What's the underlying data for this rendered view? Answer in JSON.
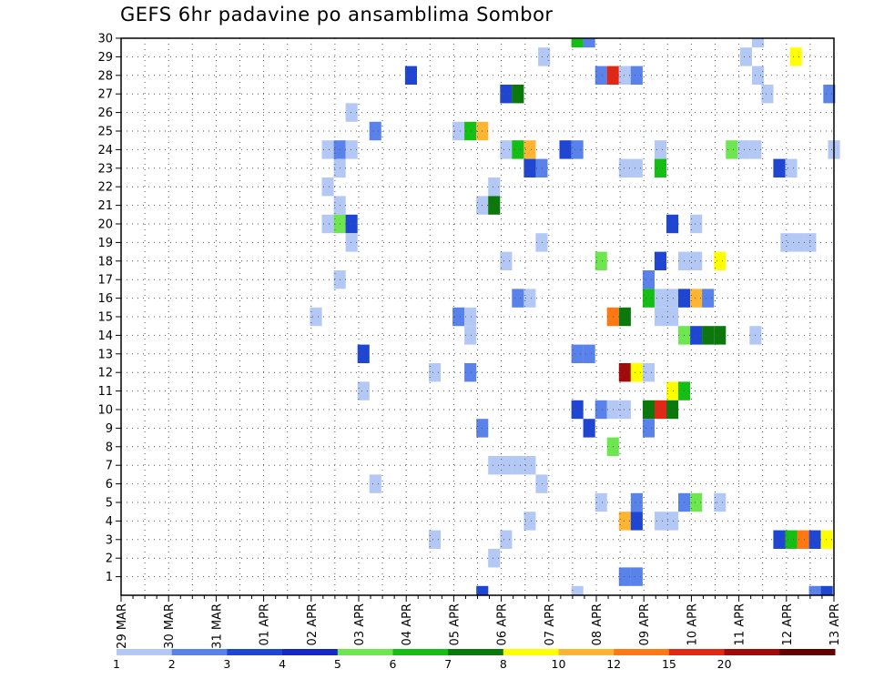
{
  "chart_data": {
    "type": "heatmap",
    "title": "GEFS 6hr padavine po ansamblima Sombor",
    "y_categories": [
      "1",
      "2",
      "3",
      "4",
      "5",
      "6",
      "7",
      "8",
      "9",
      "10",
      "11",
      "12",
      "13",
      "14",
      "15",
      "16",
      "17",
      "18",
      "19",
      "20",
      "21",
      "22",
      "23",
      "24",
      "25",
      "26",
      "27",
      "28",
      "29",
      "30"
    ],
    "x_tick_labels": [
      "29 MAR",
      "30 MAR",
      "31 MAR",
      "01 APR",
      "02 APR",
      "03 APR",
      "04 APR",
      "05 APR",
      "06 APR",
      "07 APR",
      "08 APR",
      "09 APR",
      "10 APR",
      "11 APR",
      "12 APR",
      "13 APR"
    ],
    "x_range_days": [
      0,
      15
    ],
    "y_range": [
      0,
      30
    ],
    "grid": true,
    "legend": {
      "placement": "bottom",
      "levels": [
        "1",
        "2",
        "3",
        "4",
        "5",
        "6",
        "7",
        "8",
        "10",
        "12",
        "15",
        "20"
      ],
      "colors": [
        "#b4c8f5",
        "#5a82eb",
        "#1e46d2",
        "#1428c8",
        "#6ee650",
        "#14be14",
        "#0a780a",
        "#ffff00",
        "#ffb432",
        "#ff7814",
        "#e12814",
        "#a00a0a",
        "#640000"
      ]
    },
    "cells": [
      {
        "member": 30,
        "x_days": 9.6,
        "level": 5
      },
      {
        "member": 30,
        "x_days": 9.85,
        "level": 1
      },
      {
        "member": 30,
        "x_days": 13.4,
        "level": 0
      },
      {
        "member": 29,
        "x_days": 8.9,
        "level": 0
      },
      {
        "member": 29,
        "x_days": 13.15,
        "level": 0
      },
      {
        "member": 29,
        "x_days": 14.2,
        "level": 7
      },
      {
        "member": 28,
        "x_days": 6.1,
        "level": 2
      },
      {
        "member": 28,
        "x_days": 10.1,
        "level": 1
      },
      {
        "member": 28,
        "x_days": 10.35,
        "level": 10
      },
      {
        "member": 28,
        "x_days": 10.6,
        "level": 0
      },
      {
        "member": 28,
        "x_days": 10.85,
        "level": 1
      },
      {
        "member": 28,
        "x_days": 13.4,
        "level": 0
      },
      {
        "member": 27,
        "x_days": 8.1,
        "level": 2
      },
      {
        "member": 27,
        "x_days": 8.35,
        "level": 6
      },
      {
        "member": 27,
        "x_days": 13.6,
        "level": 0
      },
      {
        "member": 27,
        "x_days": 14.9,
        "level": 1
      },
      {
        "member": 26,
        "x_days": 4.85,
        "level": 0
      },
      {
        "member": 25,
        "x_days": 5.35,
        "level": 1
      },
      {
        "member": 25,
        "x_days": 7.1,
        "level": 0
      },
      {
        "member": 25,
        "x_days": 7.35,
        "level": 5
      },
      {
        "member": 25,
        "x_days": 7.6,
        "level": 8
      },
      {
        "member": 24,
        "x_days": 4.35,
        "level": 0
      },
      {
        "member": 24,
        "x_days": 4.6,
        "level": 1
      },
      {
        "member": 24,
        "x_days": 4.85,
        "level": 0
      },
      {
        "member": 24,
        "x_days": 8.1,
        "level": 0
      },
      {
        "member": 24,
        "x_days": 8.35,
        "level": 5
      },
      {
        "member": 24,
        "x_days": 8.6,
        "level": 8
      },
      {
        "member": 24,
        "x_days": 9.35,
        "level": 2
      },
      {
        "member": 24,
        "x_days": 9.6,
        "level": 1
      },
      {
        "member": 24,
        "x_days": 11.35,
        "level": 0
      },
      {
        "member": 24,
        "x_days": 12.85,
        "level": 4
      },
      {
        "member": 24,
        "x_days": 13.1,
        "level": 0
      },
      {
        "member": 24,
        "x_days": 13.35,
        "level": 0
      },
      {
        "member": 24,
        "x_days": 15.0,
        "level": 0
      },
      {
        "member": 23,
        "x_days": 4.6,
        "level": 0
      },
      {
        "member": 23,
        "x_days": 8.6,
        "level": 2
      },
      {
        "member": 23,
        "x_days": 8.85,
        "level": 1
      },
      {
        "member": 23,
        "x_days": 10.6,
        "level": 0
      },
      {
        "member": 23,
        "x_days": 10.85,
        "level": 0
      },
      {
        "member": 23,
        "x_days": 11.35,
        "level": 5
      },
      {
        "member": 23,
        "x_days": 13.85,
        "level": 2
      },
      {
        "member": 23,
        "x_days": 14.1,
        "level": 0
      },
      {
        "member": 22,
        "x_days": 4.35,
        "level": 0
      },
      {
        "member": 22,
        "x_days": 7.85,
        "level": 0
      },
      {
        "member": 21,
        "x_days": 4.6,
        "level": 0
      },
      {
        "member": 21,
        "x_days": 7.6,
        "level": 0
      },
      {
        "member": 21,
        "x_days": 7.85,
        "level": 6
      },
      {
        "member": 20,
        "x_days": 4.35,
        "level": 0
      },
      {
        "member": 20,
        "x_days": 4.6,
        "level": 4
      },
      {
        "member": 20,
        "x_days": 4.85,
        "level": 2
      },
      {
        "member": 20,
        "x_days": 11.6,
        "level": 2
      },
      {
        "member": 20,
        "x_days": 12.1,
        "level": 0
      },
      {
        "member": 19,
        "x_days": 4.85,
        "level": 0
      },
      {
        "member": 19,
        "x_days": 8.85,
        "level": 0
      },
      {
        "member": 19,
        "x_days": 14.0,
        "level": 0
      },
      {
        "member": 19,
        "x_days": 14.25,
        "level": 0
      },
      {
        "member": 19,
        "x_days": 14.5,
        "level": 0
      },
      {
        "member": 18,
        "x_days": 8.1,
        "level": 0
      },
      {
        "member": 18,
        "x_days": 10.1,
        "level": 4
      },
      {
        "member": 18,
        "x_days": 11.35,
        "level": 2
      },
      {
        "member": 18,
        "x_days": 11.85,
        "level": 0
      },
      {
        "member": 18,
        "x_days": 12.1,
        "level": 0
      },
      {
        "member": 18,
        "x_days": 12.6,
        "level": 7
      },
      {
        "member": 17,
        "x_days": 4.6,
        "level": 0
      },
      {
        "member": 17,
        "x_days": 11.1,
        "level": 1
      },
      {
        "member": 16,
        "x_days": 8.35,
        "level": 1
      },
      {
        "member": 16,
        "x_days": 8.6,
        "level": 0
      },
      {
        "member": 16,
        "x_days": 11.1,
        "level": 5
      },
      {
        "member": 16,
        "x_days": 11.35,
        "level": 0
      },
      {
        "member": 16,
        "x_days": 11.6,
        "level": 0
      },
      {
        "member": 16,
        "x_days": 11.85,
        "level": 2
      },
      {
        "member": 16,
        "x_days": 12.1,
        "level": 8
      },
      {
        "member": 16,
        "x_days": 12.35,
        "level": 1
      },
      {
        "member": 15,
        "x_days": 4.1,
        "level": 0
      },
      {
        "member": 15,
        "x_days": 7.1,
        "level": 1
      },
      {
        "member": 15,
        "x_days": 7.35,
        "level": 0
      },
      {
        "member": 15,
        "x_days": 10.35,
        "level": 9
      },
      {
        "member": 15,
        "x_days": 10.6,
        "level": 6
      },
      {
        "member": 15,
        "x_days": 11.35,
        "level": 0
      },
      {
        "member": 15,
        "x_days": 11.6,
        "level": 0
      },
      {
        "member": 14,
        "x_days": 7.35,
        "level": 0
      },
      {
        "member": 14,
        "x_days": 11.85,
        "level": 4
      },
      {
        "member": 14,
        "x_days": 12.1,
        "level": 2
      },
      {
        "member": 14,
        "x_days": 12.35,
        "level": 6
      },
      {
        "member": 14,
        "x_days": 12.6,
        "level": 6
      },
      {
        "member": 14,
        "x_days": 13.35,
        "level": 0
      },
      {
        "member": 13,
        "x_days": 5.1,
        "level": 2
      },
      {
        "member": 13,
        "x_days": 9.6,
        "level": 1
      },
      {
        "member": 13,
        "x_days": 9.85,
        "level": 1
      },
      {
        "member": 12,
        "x_days": 6.6,
        "level": 0
      },
      {
        "member": 12,
        "x_days": 7.35,
        "level": 1
      },
      {
        "member": 12,
        "x_days": 10.6,
        "level": 11
      },
      {
        "member": 12,
        "x_days": 10.85,
        "level": 7
      },
      {
        "member": 12,
        "x_days": 11.1,
        "level": 0
      },
      {
        "member": 11,
        "x_days": 5.1,
        "level": 0
      },
      {
        "member": 11,
        "x_days": 11.6,
        "level": 7
      },
      {
        "member": 11,
        "x_days": 11.85,
        "level": 5
      },
      {
        "member": 10,
        "x_days": 9.6,
        "level": 2
      },
      {
        "member": 10,
        "x_days": 10.1,
        "level": 1
      },
      {
        "member": 10,
        "x_days": 10.35,
        "level": 0
      },
      {
        "member": 10,
        "x_days": 10.6,
        "level": 0
      },
      {
        "member": 10,
        "x_days": 11.1,
        "level": 6
      },
      {
        "member": 10,
        "x_days": 11.35,
        "level": 10
      },
      {
        "member": 10,
        "x_days": 11.6,
        "level": 6
      },
      {
        "member": 9,
        "x_days": 7.6,
        "level": 1
      },
      {
        "member": 9,
        "x_days": 9.85,
        "level": 2
      },
      {
        "member": 9,
        "x_days": 11.1,
        "level": 1
      },
      {
        "member": 8,
        "x_days": 10.35,
        "level": 4
      },
      {
        "member": 7,
        "x_days": 7.85,
        "level": 0
      },
      {
        "member": 7,
        "x_days": 8.1,
        "level": 0
      },
      {
        "member": 7,
        "x_days": 8.35,
        "level": 0
      },
      {
        "member": 7,
        "x_days": 8.6,
        "level": 0
      },
      {
        "member": 6,
        "x_days": 5.35,
        "level": 0
      },
      {
        "member": 6,
        "x_days": 8.85,
        "level": 0
      },
      {
        "member": 5,
        "x_days": 10.1,
        "level": 0
      },
      {
        "member": 5,
        "x_days": 10.85,
        "level": 1
      },
      {
        "member": 5,
        "x_days": 11.85,
        "level": 1
      },
      {
        "member": 5,
        "x_days": 12.1,
        "level": 4
      },
      {
        "member": 5,
        "x_days": 12.6,
        "level": 0
      },
      {
        "member": 4,
        "x_days": 8.6,
        "level": 0
      },
      {
        "member": 4,
        "x_days": 10.6,
        "level": 8
      },
      {
        "member": 4,
        "x_days": 10.85,
        "level": 2
      },
      {
        "member": 4,
        "x_days": 11.35,
        "level": 0
      },
      {
        "member": 4,
        "x_days": 11.6,
        "level": 0
      },
      {
        "member": 3,
        "x_days": 6.6,
        "level": 0
      },
      {
        "member": 3,
        "x_days": 8.1,
        "level": 0
      },
      {
        "member": 3,
        "x_days": 13.85,
        "level": 2
      },
      {
        "member": 3,
        "x_days": 14.1,
        "level": 5
      },
      {
        "member": 3,
        "x_days": 14.35,
        "level": 9
      },
      {
        "member": 3,
        "x_days": 14.6,
        "level": 2
      },
      {
        "member": 3,
        "x_days": 14.85,
        "level": 7
      },
      {
        "member": 2,
        "x_days": 7.85,
        "level": 0
      },
      {
        "member": 1,
        "x_days": 10.6,
        "level": 1
      },
      {
        "member": 1,
        "x_days": 10.85,
        "level": 1
      },
      {
        "member": 0,
        "x_days": 7.6,
        "level": 2
      },
      {
        "member": 0,
        "x_days": 9.6,
        "level": 0
      },
      {
        "member": 0,
        "x_days": 14.6,
        "level": 1
      },
      {
        "member": 0,
        "x_days": 14.85,
        "level": 2
      }
    ]
  }
}
